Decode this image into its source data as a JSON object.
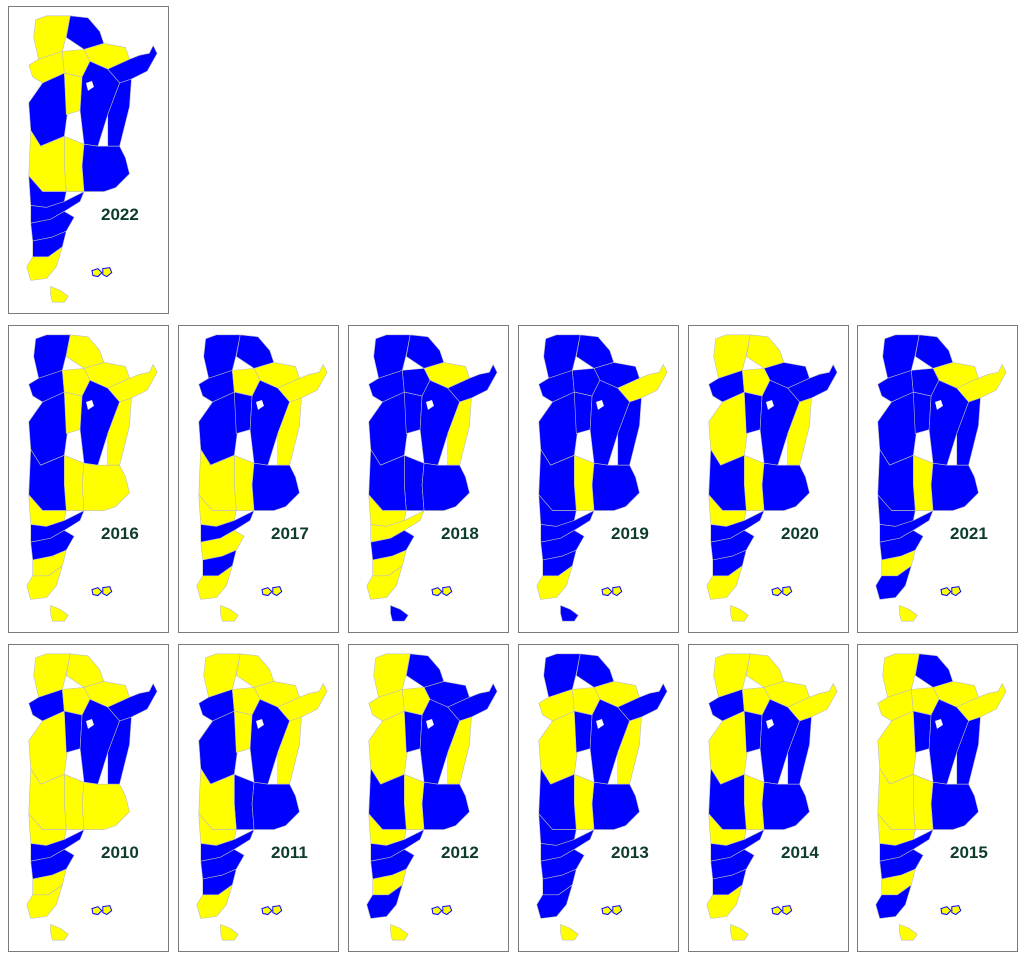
{
  "colors": {
    "blue": "#0000ff",
    "yellow": "#ffff00",
    "border": "#bdbdbd",
    "label": "#0d3b2e"
  },
  "maps": [
    {
      "year": "2022",
      "scheme": [
        "Y",
        "B",
        "Y",
        "Y",
        "Y",
        "B",
        "B",
        "Y",
        "B",
        "B",
        "Y",
        "B",
        "Y",
        "B",
        "B",
        "B",
        "B",
        "Y",
        "Y"
      ]
    },
    {
      "year": "2016",
      "scheme": [
        "B",
        "Y",
        "Y",
        "B",
        "Y",
        "Y",
        "B",
        "Y",
        "B",
        "Y",
        "Y",
        "Y",
        "B",
        "Y",
        "B",
        "B",
        "Y",
        "Y",
        "Y"
      ]
    },
    {
      "year": "2017",
      "scheme": [
        "B",
        "B",
        "Y",
        "B",
        "Y",
        "Y",
        "B",
        "B",
        "B",
        "Y",
        "Y",
        "B",
        "Y",
        "Y",
        "B",
        "Y",
        "B",
        "Y",
        "Y"
      ]
    },
    {
      "year": "2018",
      "scheme": [
        "B",
        "B",
        "Y",
        "B",
        "B",
        "B",
        "B",
        "B",
        "B",
        "Y",
        "B",
        "B",
        "B",
        "Y",
        "Y",
        "B",
        "Y",
        "Y",
        "B"
      ]
    },
    {
      "year": "2019",
      "scheme": [
        "B",
        "B",
        "B",
        "B",
        "B",
        "Y",
        "B",
        "B",
        "B",
        "B",
        "Y",
        "B",
        "B",
        "B",
        "B",
        "B",
        "B",
        "Y",
        "B"
      ]
    },
    {
      "year": "2020",
      "scheme": [
        "Y",
        "Y",
        "B",
        "B",
        "Y",
        "B",
        "Y",
        "B",
        "B",
        "Y",
        "Y",
        "B",
        "B",
        "Y",
        "B",
        "B",
        "B",
        "Y",
        "Y"
      ]
    },
    {
      "year": "2021",
      "scheme": [
        "B",
        "B",
        "Y",
        "B",
        "B",
        "Y",
        "B",
        "B",
        "B",
        "B",
        "Y",
        "B",
        "B",
        "B",
        "B",
        "B",
        "Y",
        "B",
        "Y"
      ]
    },
    {
      "year": "2010",
      "scheme": [
        "Y",
        "Y",
        "Y",
        "B",
        "Y",
        "B",
        "Y",
        "B",
        "B",
        "B",
        "Y",
        "Y",
        "Y",
        "Y",
        "B",
        "B",
        "Y",
        "Y",
        "Y"
      ]
    },
    {
      "year": "2011",
      "scheme": [
        "Y",
        "Y",
        "Y",
        "B",
        "Y",
        "Y",
        "B",
        "Y",
        "B",
        "Y",
        "B",
        "B",
        "Y",
        "Y",
        "B",
        "B",
        "B",
        "Y",
        "Y"
      ]
    },
    {
      "year": "2012",
      "scheme": [
        "Y",
        "B",
        "B",
        "Y",
        "Y",
        "B",
        "Y",
        "B",
        "B",
        "Y",
        "Y",
        "B",
        "B",
        "Y",
        "B",
        "B",
        "Y",
        "B",
        "Y"
      ]
    },
    {
      "year": "2013",
      "scheme": [
        "B",
        "B",
        "Y",
        "Y",
        "Y",
        "B",
        "Y",
        "B",
        "B",
        "Y",
        "Y",
        "B",
        "B",
        "B",
        "B",
        "B",
        "B",
        "B",
        "Y"
      ]
    },
    {
      "year": "2014",
      "scheme": [
        "Y",
        "Y",
        "Y",
        "B",
        "Y",
        "Y",
        "Y",
        "B",
        "B",
        "B",
        "Y",
        "B",
        "B",
        "Y",
        "B",
        "B",
        "B",
        "Y",
        "Y"
      ]
    },
    {
      "year": "2015",
      "scheme": [
        "Y",
        "B",
        "Y",
        "Y",
        "Y",
        "Y",
        "Y",
        "B",
        "B",
        "B",
        "Y",
        "B",
        "Y",
        "Y",
        "B",
        "B",
        "Y",
        "B",
        "Y"
      ]
    }
  ]
}
